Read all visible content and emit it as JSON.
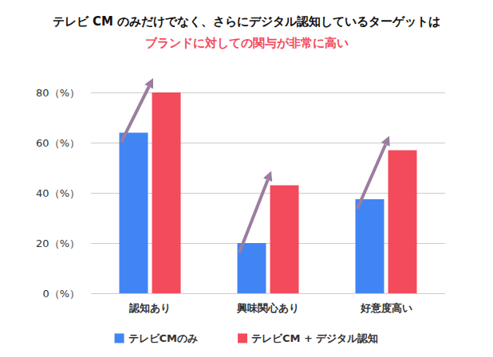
{
  "chart_data": {
    "type": "bar",
    "title": "テレビ CM のみだけでなく、さらにデジタル認知しているターゲットは",
    "subtitle": "ブランドに対しての関与が非常に高い",
    "categories": [
      "認知あり",
      "興味関心あり",
      "好意度高い"
    ],
    "series": [
      {
        "name": "テレビCMのみ",
        "color": "#4185f4",
        "values": [
          64,
          20,
          37.5
        ]
      },
      {
        "name": "テレビCM + デジタル認知",
        "color": "#f34a5c",
        "values": [
          80,
          43,
          57
        ]
      }
    ],
    "ylim": [
      0,
      80
    ],
    "yticks": [
      {
        "value": 0,
        "label": "0（%）"
      },
      {
        "value": 20,
        "label": "20（%）"
      },
      {
        "value": 40,
        "label": "40（%）"
      },
      {
        "value": 60,
        "label": "60（%）"
      },
      {
        "value": 80,
        "label": "80（%）"
      }
    ],
    "grid": true,
    "legend": "bottom"
  }
}
